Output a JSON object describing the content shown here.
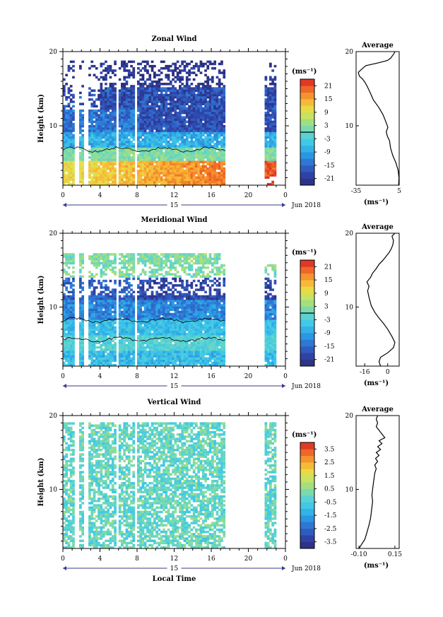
{
  "chart_data": [
    {
      "type": "heatmap",
      "title": "Zonal Wind",
      "ylabel": "Height (km)",
      "yticks": [
        "20",
        "10"
      ],
      "xticks": [
        "0",
        "4",
        "8",
        "12",
        "16",
        "20",
        "0"
      ],
      "day_label": "15",
      "date_label": "Jun 2018",
      "xlim": [
        0,
        24
      ],
      "ylim": [
        2,
        20
      ],
      "colorbar": {
        "unit": "(ms⁻¹)",
        "ticks": [
          "21",
          "15",
          "9",
          "3",
          "-3",
          "-9",
          "-15",
          "-21"
        ],
        "range": [
          -24,
          24
        ]
      },
      "profile": {
        "title": "Average",
        "yticks": [
          "20",
          "10"
        ],
        "xticks": [
          "-35",
          "5"
        ],
        "xlabel": "(ms⁻¹)",
        "xlim": [
          -35,
          5
        ],
        "points": [
          [
            4.5,
            2
          ],
          [
            4.8,
            3
          ],
          [
            4,
            4
          ],
          [
            2,
            5
          ],
          [
            -1,
            6
          ],
          [
            -3,
            7
          ],
          [
            -4,
            8
          ],
          [
            -6,
            8.6
          ],
          [
            -7,
            9.2
          ],
          [
            -5.5,
            9.8
          ],
          [
            -7.5,
            10.6
          ],
          [
            -10,
            11.5
          ],
          [
            -14,
            12.5
          ],
          [
            -19,
            13.5
          ],
          [
            -22,
            14.5
          ],
          [
            -25,
            15.4
          ],
          [
            -27,
            15.9
          ],
          [
            -29,
            16.3
          ],
          [
            -32,
            16.7
          ],
          [
            -33,
            17.2
          ],
          [
            -30,
            17.6
          ],
          [
            -26,
            18.1
          ],
          [
            -14,
            18.5
          ],
          [
            -6,
            18.8
          ],
          [
            -3,
            19.1
          ],
          [
            -1.5,
            19.4
          ],
          [
            0,
            19.7
          ],
          [
            1,
            20
          ]
        ]
      }
    },
    {
      "type": "heatmap",
      "title": "Meridional Wind",
      "ylabel": "Height (km)",
      "yticks": [
        "20",
        "10"
      ],
      "xticks": [
        "0",
        "4",
        "8",
        "12",
        "16",
        "20",
        "0"
      ],
      "day_label": "15",
      "date_label": "Jun 2018",
      "xlim": [
        0,
        24
      ],
      "ylim": [
        2,
        20
      ],
      "colorbar": {
        "unit": "(ms⁻¹)",
        "ticks": [
          "21",
          "15",
          "9",
          "3",
          "-3",
          "-9",
          "-15",
          "-21"
        ],
        "range": [
          -24,
          24
        ]
      },
      "profile": {
        "title": "Average",
        "yticks": [
          "20",
          "10"
        ],
        "xticks": [
          "-16",
          "0"
        ],
        "xlabel": "(ms⁻¹)",
        "xlim": [
          -22,
          8
        ],
        "points": [
          [
            -5,
            2
          ],
          [
            -6,
            2.6
          ],
          [
            -5,
            3.2
          ],
          [
            0,
            3.8
          ],
          [
            4,
            4.5
          ],
          [
            5,
            5.2
          ],
          [
            3,
            6
          ],
          [
            0,
            7
          ],
          [
            -3,
            7.8
          ],
          [
            -6,
            8.5
          ],
          [
            -9,
            9.3
          ],
          [
            -11.5,
            10.2
          ],
          [
            -13,
            11.3
          ],
          [
            -14,
            12.2
          ],
          [
            -13,
            12.8
          ],
          [
            -14.5,
            13.4
          ],
          [
            -12,
            14
          ],
          [
            -10.5,
            14.6
          ],
          [
            -8,
            15.2
          ],
          [
            -6,
            15.8
          ],
          [
            -3,
            16.4
          ],
          [
            -1,
            16.9
          ],
          [
            1,
            17.4
          ],
          [
            2.5,
            17.9
          ],
          [
            3.5,
            18.4
          ],
          [
            4,
            19
          ],
          [
            3,
            19.6
          ],
          [
            5,
            20
          ]
        ]
      }
    },
    {
      "type": "heatmap",
      "title": "Vertical Wind",
      "ylabel": "Height (km)",
      "xlabel": "Local Time",
      "yticks": [
        "20",
        "10"
      ],
      "xticks": [
        "0",
        "4",
        "8",
        "12",
        "16",
        "20",
        "0"
      ],
      "day_label": "15",
      "date_label": "Jun 2018",
      "xlim": [
        0,
        24
      ],
      "ylim": [
        2,
        20
      ],
      "colorbar": {
        "unit": "(ms⁻¹)",
        "ticks": [
          "3.5",
          "2.5",
          "1.5",
          "0.5",
          "-0.5",
          "-1.5",
          "-2.5",
          "-3.5"
        ],
        "range": [
          -4,
          4
        ]
      },
      "profile": {
        "title": "Average",
        "yticks": [
          "20",
          "10"
        ],
        "xticks": [
          "-0.10",
          "0.15"
        ],
        "xlabel": "(ms⁻¹)",
        "xlim": [
          -0.12,
          0.18
        ],
        "points": [
          [
            -0.1,
            2
          ],
          [
            -0.08,
            2.6
          ],
          [
            -0.06,
            3.2
          ],
          [
            -0.05,
            3.8
          ],
          [
            -0.04,
            4.5
          ],
          [
            -0.03,
            5.2
          ],
          [
            -0.02,
            6
          ],
          [
            -0.015,
            6.8
          ],
          [
            -0.01,
            7.6
          ],
          [
            -0.005,
            8.4
          ],
          [
            -0.01,
            9.2
          ],
          [
            -0.005,
            10
          ],
          [
            0,
            10.8
          ],
          [
            0.005,
            11.5
          ],
          [
            0.01,
            12.2
          ],
          [
            0.02,
            12.8
          ],
          [
            0.01,
            13.3
          ],
          [
            0.03,
            13.8
          ],
          [
            0.015,
            14.2
          ],
          [
            0.04,
            14.6
          ],
          [
            0.02,
            15
          ],
          [
            0.05,
            15.4
          ],
          [
            0.03,
            15.8
          ],
          [
            0.06,
            16.2
          ],
          [
            0.04,
            16.6
          ],
          [
            0.08,
            17
          ],
          [
            0.06,
            17.5
          ],
          [
            0.04,
            18
          ],
          [
            0.02,
            18.5
          ],
          [
            0.03,
            19
          ],
          [
            0.02,
            19.5
          ],
          [
            0.03,
            20
          ]
        ]
      }
    }
  ]
}
